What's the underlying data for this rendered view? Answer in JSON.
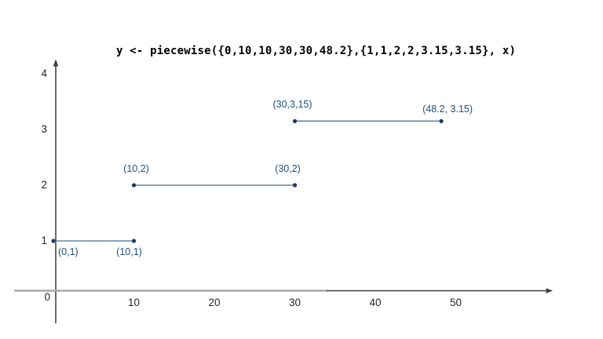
{
  "colors": {
    "background": "#ffffff",
    "title_text": "#000000",
    "segment_line": "#5f87aa",
    "point_dot": "#1f3864",
    "point_label": "#1f4e79",
    "axis_dark": "#3c3c3c",
    "axis_gray": "#a9a9a9",
    "tick_label": "#262626"
  },
  "chart_data": {
    "type": "line",
    "title": "y <- piecewise({0,10,10,30,30,48.2},{1,1,2,2,3.15,3.15}, x)",
    "function_name": "piecewise",
    "x_breakpoints": [
      0,
      10,
      10,
      30,
      30,
      48.2
    ],
    "y_values": [
      1,
      1,
      2,
      2,
      3.15,
      3.15
    ],
    "segments": [
      {
        "x1": 0,
        "y1": 1,
        "x2": 10,
        "y2": 1
      },
      {
        "x1": 10,
        "y1": 2,
        "x2": 30,
        "y2": 2
      },
      {
        "x1": 30,
        "y1": 3.15,
        "x2": 48.2,
        "y2": 3.15
      }
    ],
    "points": [
      {
        "x": 0,
        "y": 1,
        "label": "(0,1)"
      },
      {
        "x": 10,
        "y": 1,
        "label": "(10,1)"
      },
      {
        "x": 10,
        "y": 2,
        "label": "(10,2)"
      },
      {
        "x": 30,
        "y": 2,
        "label": "(30,2)"
      },
      {
        "x": 30,
        "y": 3.15,
        "label": "(30,3,15)"
      },
      {
        "x": 48.2,
        "y": 3.15,
        "label": "(48.2, 3.15)"
      }
    ],
    "x_ticks": [
      {
        "value": 10,
        "label": "10"
      },
      {
        "value": 20,
        "label": "20"
      },
      {
        "value": 30,
        "label": "30"
      },
      {
        "value": 40,
        "label": "40"
      },
      {
        "value": 50,
        "label": "50"
      }
    ],
    "y_ticks": [
      {
        "value": 1,
        "label": "1"
      },
      {
        "value": 2,
        "label": "2"
      },
      {
        "value": 3,
        "label": "3"
      },
      {
        "value": 4,
        "label": "4"
      }
    ],
    "origin_label": "0",
    "xlim": [
      0,
      62
    ],
    "ylim": [
      0,
      4.2
    ],
    "grid": false,
    "legend": false
  }
}
